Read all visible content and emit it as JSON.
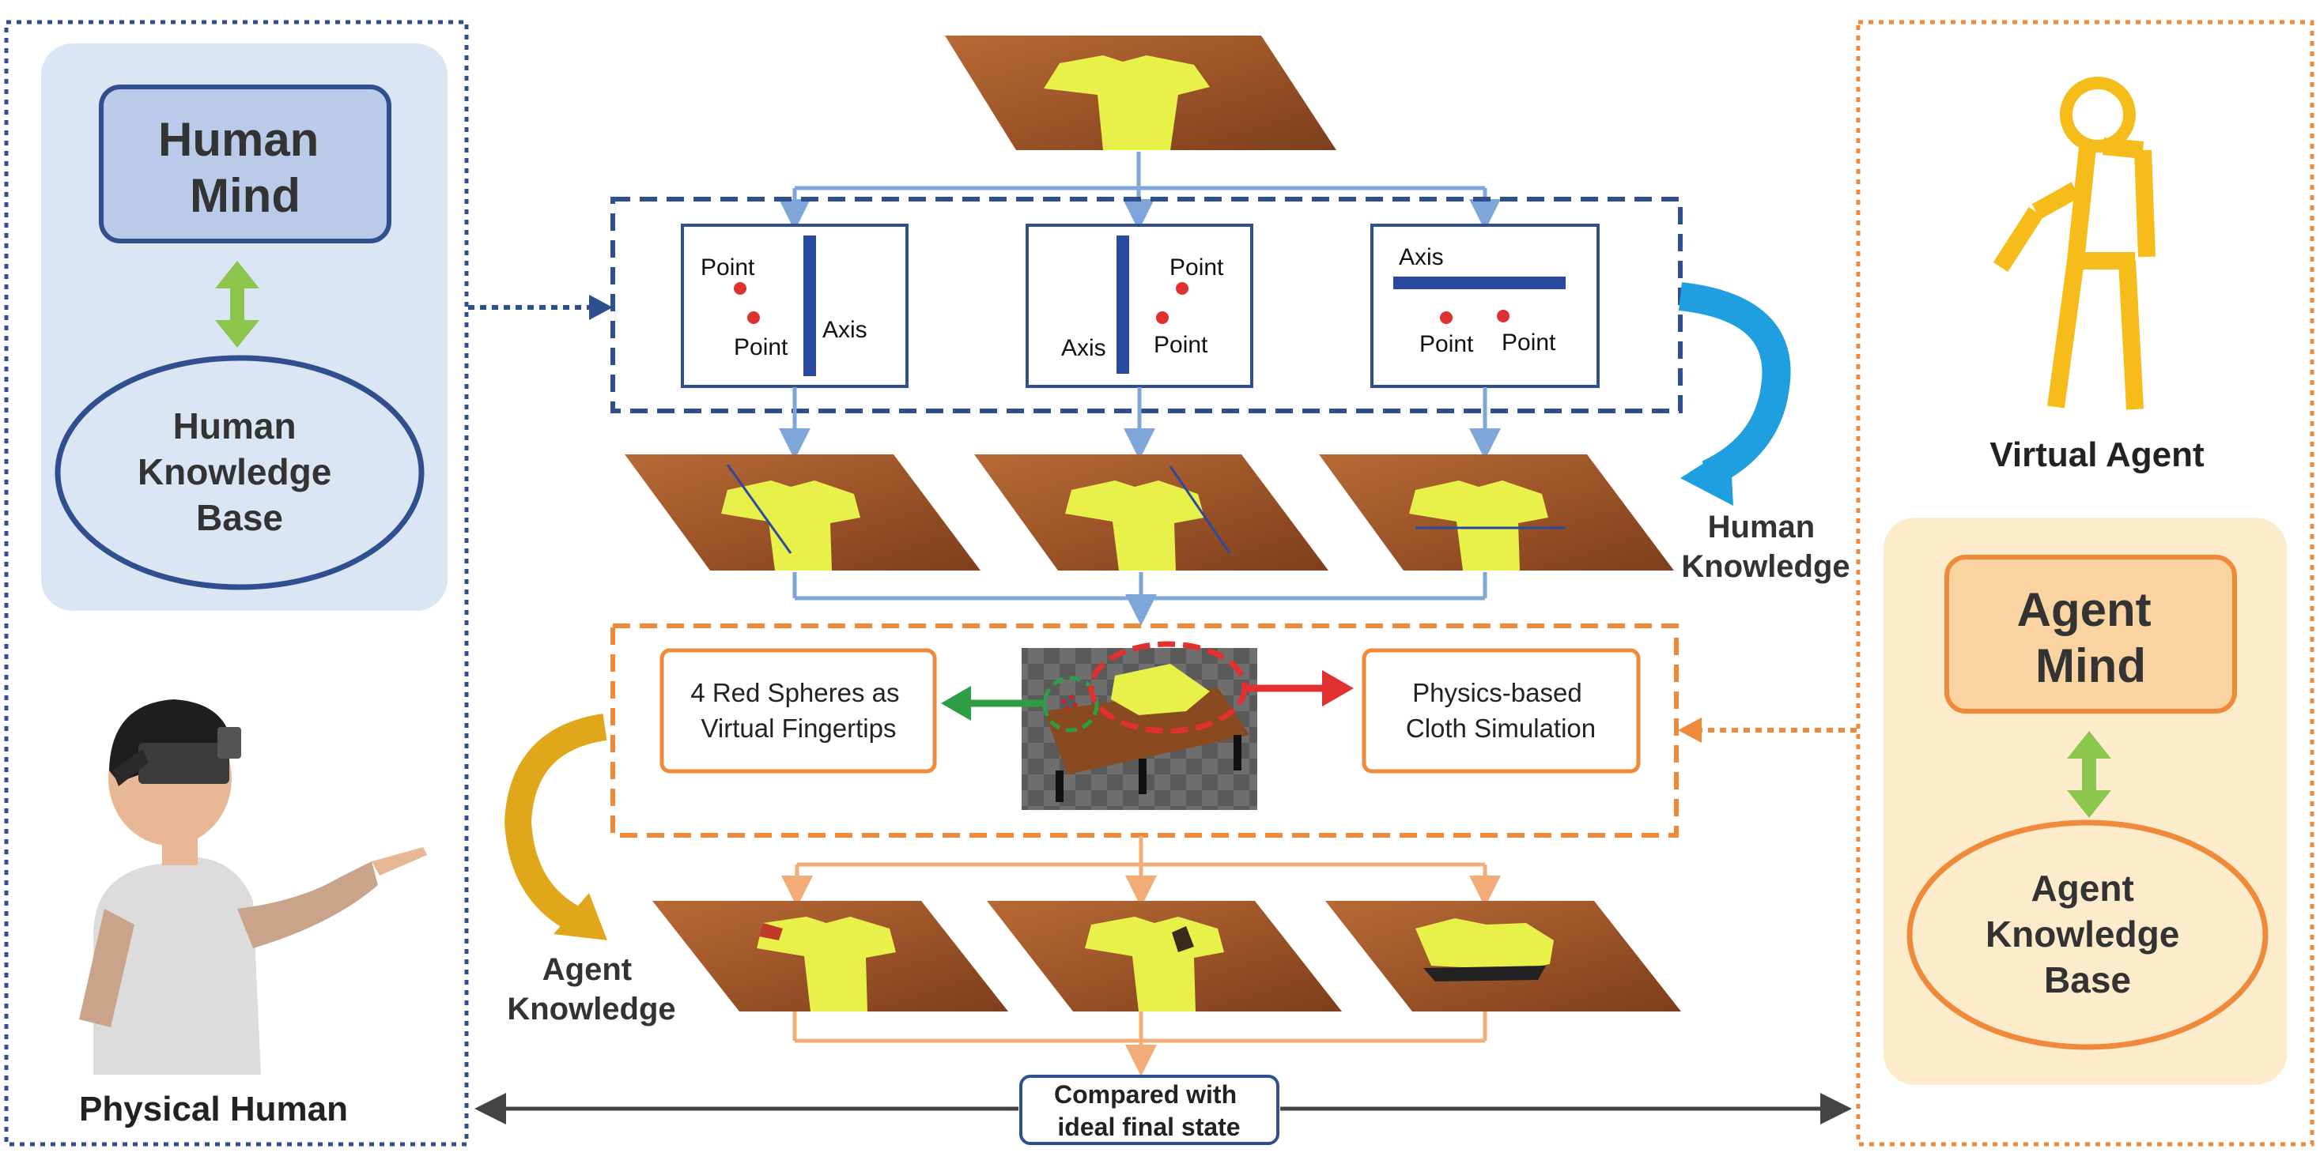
{
  "left_panel": {
    "human_mind": "Human\nMind",
    "human_kb": "Human\nKnowledge\nBase",
    "physical_human": "Physical Human"
  },
  "right_panel": {
    "virtual_agent": "Virtual Agent",
    "agent_mind": "Agent\nMind",
    "agent_kb": "Agent\nKnowledge\nBase"
  },
  "fold_boxes": [
    {
      "point_top": "Point",
      "point_bottom": "Point",
      "axis": "Axis"
    },
    {
      "point_top": "Point",
      "point_bottom": "Point",
      "axis": "Axis"
    },
    {
      "axis": "Axis",
      "point_left": "Point",
      "point_right": "Point"
    }
  ],
  "labels": {
    "human_knowledge": "Human\nKnowledge",
    "agent_knowledge": "Agent\nKnowledge",
    "red_spheres": "4 Red Spheres as\nVirtual Fingertips",
    "cloth_sim": "Physics-based\nCloth Simulation",
    "compared": "Compared with\nideal final state"
  },
  "colors": {
    "navy": "#2f4f8f",
    "light_blue_arrow": "#7fa6d8",
    "orange": "#ee8a3a",
    "light_orange_arrow": "#f2ac78",
    "green": "#8dc64c",
    "sky_blue": "#1f9fe0",
    "gold": "#e0a71a",
    "shirt_yellow": "#e8f04a",
    "wood": "#a0582a",
    "agent_figure": "#f6bd1a",
    "red": "#e03030",
    "dark_green": "#2e9e46"
  }
}
